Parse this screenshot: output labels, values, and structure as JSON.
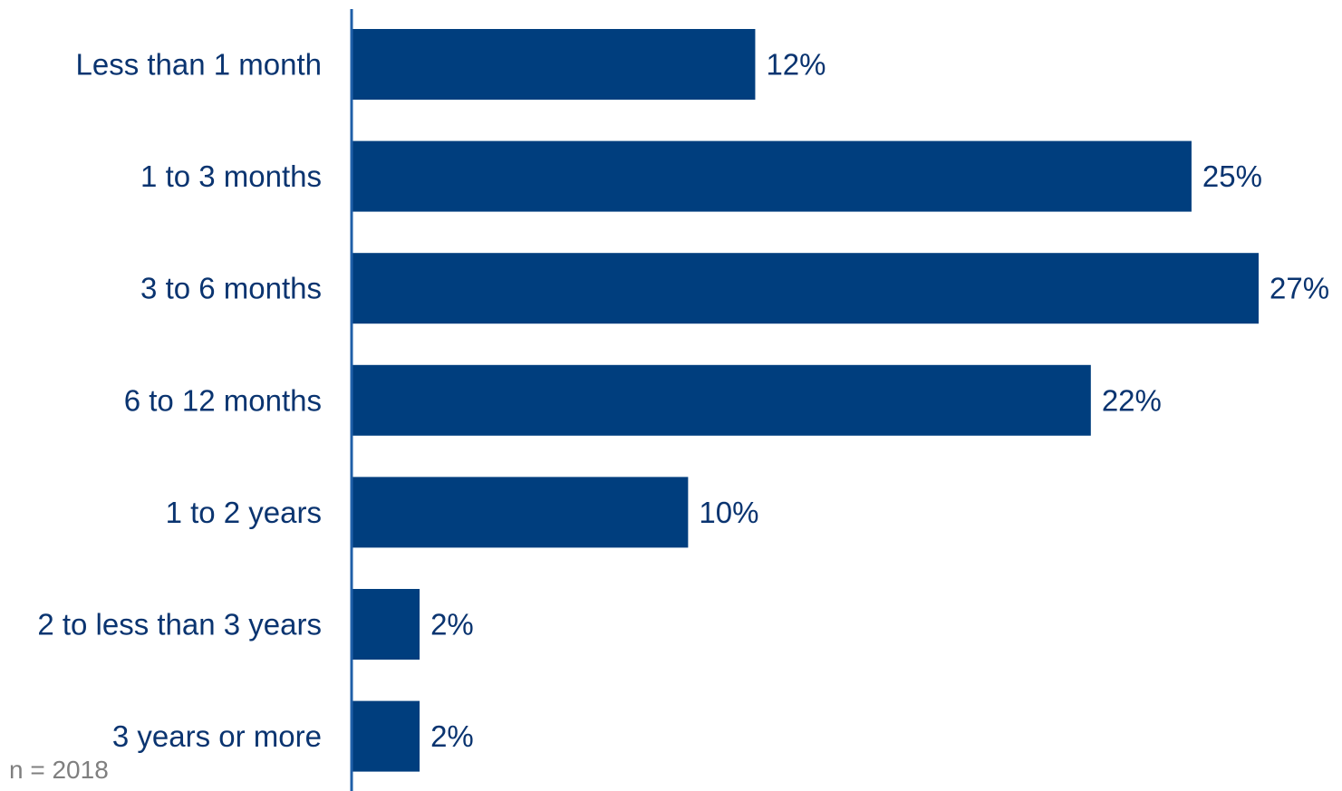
{
  "chart_data": {
    "type": "bar",
    "orientation": "horizontal",
    "categories": [
      "Less than 1 month",
      "1 to 3 months",
      "3 to 6 months",
      "6 to 12 months",
      "1 to 2 years",
      "2 to less than 3 years",
      "3 years or more"
    ],
    "values": [
      12,
      25,
      27,
      22,
      10,
      2,
      2
    ],
    "value_labels": [
      "12%",
      "25%",
      "27%",
      "22%",
      "10%",
      "2%",
      "2%"
    ],
    "unit": "%",
    "xlim": [
      0,
      27
    ],
    "grid": false,
    "legend": "none",
    "bar_color": "#003e7e",
    "text_color": "#0a3470",
    "axis_color": "#1f5fa8"
  },
  "note": "n = 2018"
}
